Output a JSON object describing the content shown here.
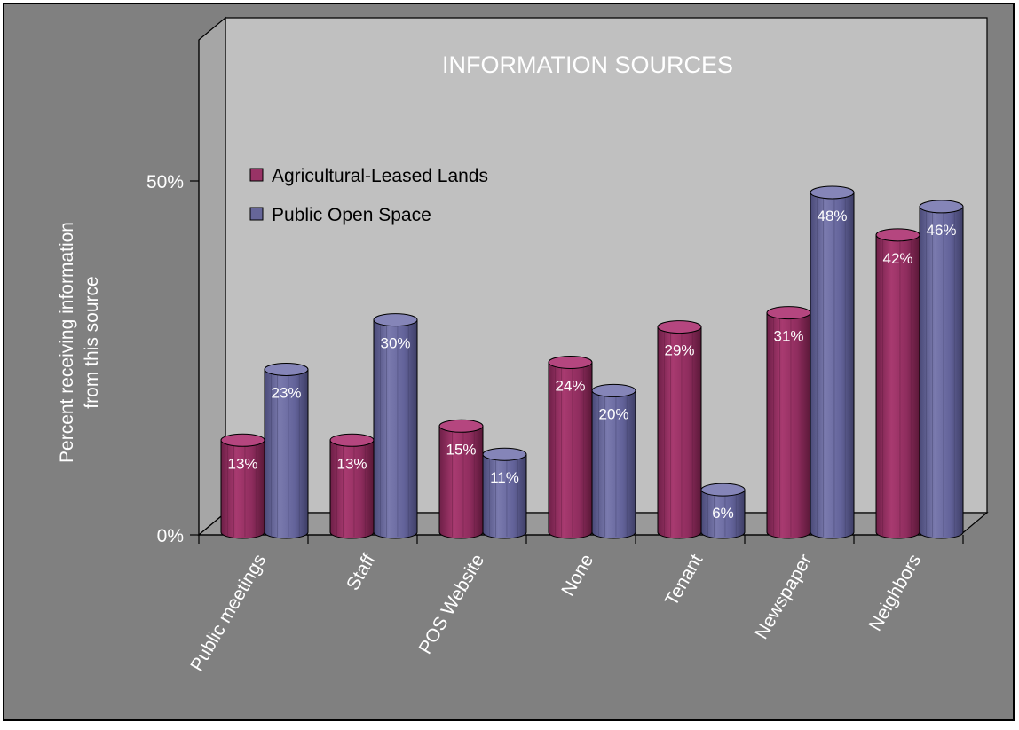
{
  "chart_data": {
    "type": "bar",
    "title": "INFORMATION SOURCES",
    "ylabel_lines": [
      "Percent receiving information",
      "from this source"
    ],
    "xlabel": "",
    "ylim": [
      0,
      0.5
    ],
    "y_ticks": [
      {
        "value": 0,
        "label": "0%"
      },
      {
        "value": 0.5,
        "label": "50%"
      }
    ],
    "categories": [
      "Public meetings",
      "Staff",
      "POS Website",
      "None",
      "Tenant",
      "Newspaper",
      "Neighbors"
    ],
    "series": [
      {
        "name": "Agricultural-Leased Lands",
        "color": "#993366",
        "values": [
          0.13,
          0.13,
          0.15,
          0.24,
          0.29,
          0.31,
          0.42
        ],
        "labels": [
          "13%",
          "13%",
          "15%",
          "24%",
          "29%",
          "31%",
          "42%"
        ]
      },
      {
        "name": "Public Open Space",
        "color": "#666699",
        "values": [
          0.23,
          0.3,
          0.11,
          0.2,
          0.06,
          0.48,
          0.46
        ],
        "labels": [
          "23%",
          "30%",
          "11%",
          "20%",
          "6%",
          "48%",
          "46%"
        ]
      }
    ],
    "legend_position": "top-left",
    "background_color": "#808080",
    "plot_wall_color": "#c0c0c0",
    "grid": false
  }
}
